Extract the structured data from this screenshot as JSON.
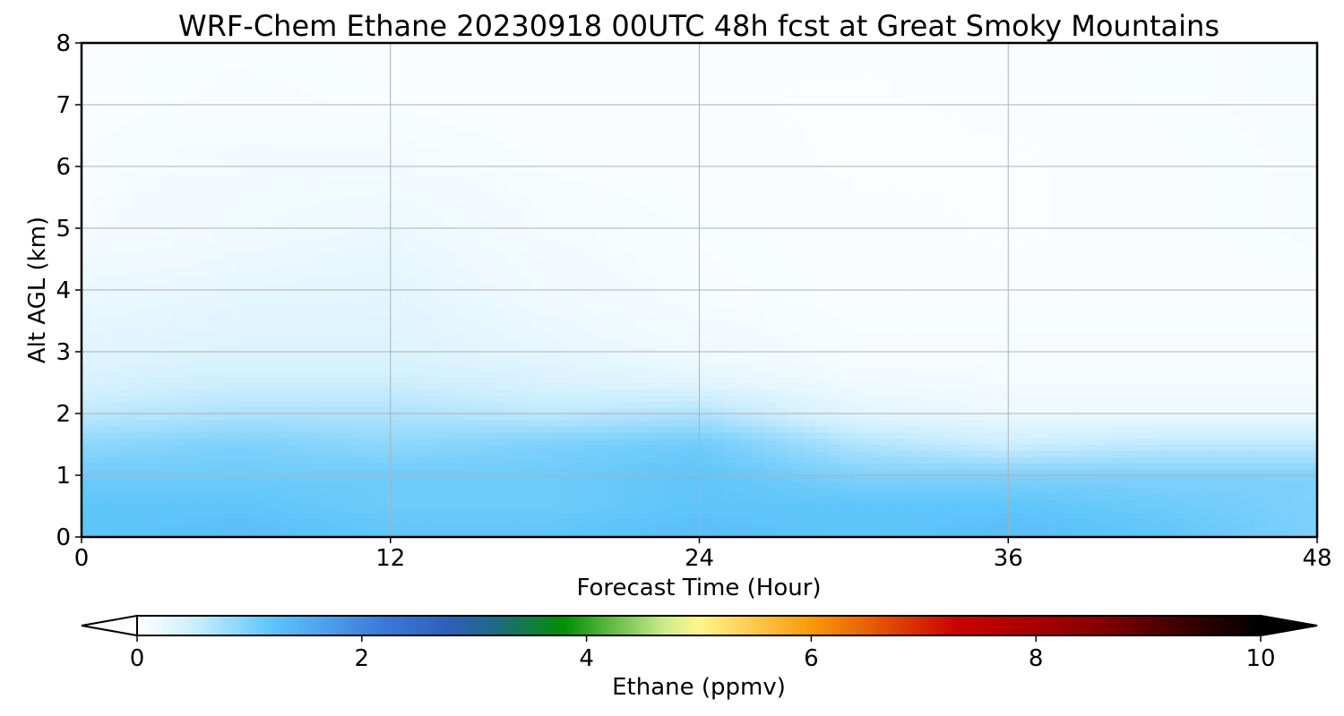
{
  "chart_data": {
    "type": "heatmap",
    "title": "WRF-Chem Ethane  20230918 00UTC 48h fcst at Great Smoky Mountains",
    "xlabel": "Forecast Time (Hour)",
    "ylabel": "Alt AGL (km)",
    "xlim": [
      0,
      48
    ],
    "ylim": [
      0,
      8
    ],
    "xticks": [
      0,
      12,
      24,
      36,
      48
    ],
    "yticks": [
      0,
      1,
      2,
      3,
      4,
      5,
      6,
      7,
      8
    ],
    "grid": true,
    "x_hours": [
      0,
      6,
      12,
      18,
      24,
      30,
      36,
      42,
      48
    ],
    "y_km": [
      0,
      0.5,
      1.0,
      1.5,
      2.0,
      2.5,
      3.0,
      4.0,
      5.0,
      6.0,
      7.0,
      8.0
    ],
    "z_ppmv": [
      [
        1.2,
        1.3,
        1.2,
        1.2,
        1.3,
        1.2,
        1.3,
        1.2,
        1.0
      ],
      [
        1.2,
        1.2,
        1.1,
        1.1,
        1.2,
        1.2,
        1.2,
        1.1,
        1.0
      ],
      [
        1.1,
        1.1,
        1.1,
        1.1,
        1.2,
        1.0,
        1.0,
        1.0,
        1.0
      ],
      [
        0.9,
        1.0,
        0.9,
        1.0,
        1.1,
        0.7,
        0.5,
        0.6,
        0.6
      ],
      [
        0.6,
        0.7,
        0.7,
        0.6,
        0.7,
        0.3,
        0.2,
        0.2,
        0.2
      ],
      [
        0.4,
        0.5,
        0.5,
        0.4,
        0.3,
        0.15,
        0.1,
        0.1,
        0.1
      ],
      [
        0.3,
        0.35,
        0.35,
        0.25,
        0.15,
        0.08,
        0.08,
        0.08,
        0.08
      ],
      [
        0.2,
        0.25,
        0.28,
        0.15,
        0.08,
        0.06,
        0.06,
        0.06,
        0.06
      ],
      [
        0.1,
        0.15,
        0.2,
        0.1,
        0.07,
        0.06,
        0.04,
        0.06,
        0.08
      ],
      [
        0.08,
        0.12,
        0.12,
        0.07,
        0.06,
        0.04,
        0.04,
        0.06,
        0.08
      ],
      [
        0.06,
        0.08,
        0.07,
        0.05,
        0.05,
        0.04,
        0.05,
        0.07,
        0.08
      ],
      [
        0.06,
        0.07,
        0.06,
        0.05,
        0.05,
        0.05,
        0.06,
        0.07,
        0.08
      ]
    ],
    "colorbar": {
      "label": "Ethane  (ppmv)",
      "range": [
        0,
        10
      ],
      "ticks": [
        0,
        2,
        4,
        6,
        8,
        10
      ],
      "extend": "both",
      "under_color": "#ffffff",
      "over_color": "#000000",
      "stops": [
        {
          "v": 0,
          "c": "#ffffff"
        },
        {
          "v": 0.5,
          "c": "#cdeefe"
        },
        {
          "v": 1.2,
          "c": "#5ec5fa"
        },
        {
          "v": 2.2,
          "c": "#3a78d8"
        },
        {
          "v": 2.8,
          "c": "#2c5fb8"
        },
        {
          "v": 3.2,
          "c": "#1e6a80"
        },
        {
          "v": 3.8,
          "c": "#038f03"
        },
        {
          "v": 4.7,
          "c": "#cdeb8c"
        },
        {
          "v": 5.0,
          "c": "#fff58c"
        },
        {
          "v": 6.0,
          "c": "#f99a0a"
        },
        {
          "v": 7.3,
          "c": "#cc0000"
        },
        {
          "v": 8.5,
          "c": "#8a0000"
        },
        {
          "v": 9.5,
          "c": "#2a0000"
        },
        {
          "v": 10,
          "c": "#000000"
        }
      ]
    }
  }
}
